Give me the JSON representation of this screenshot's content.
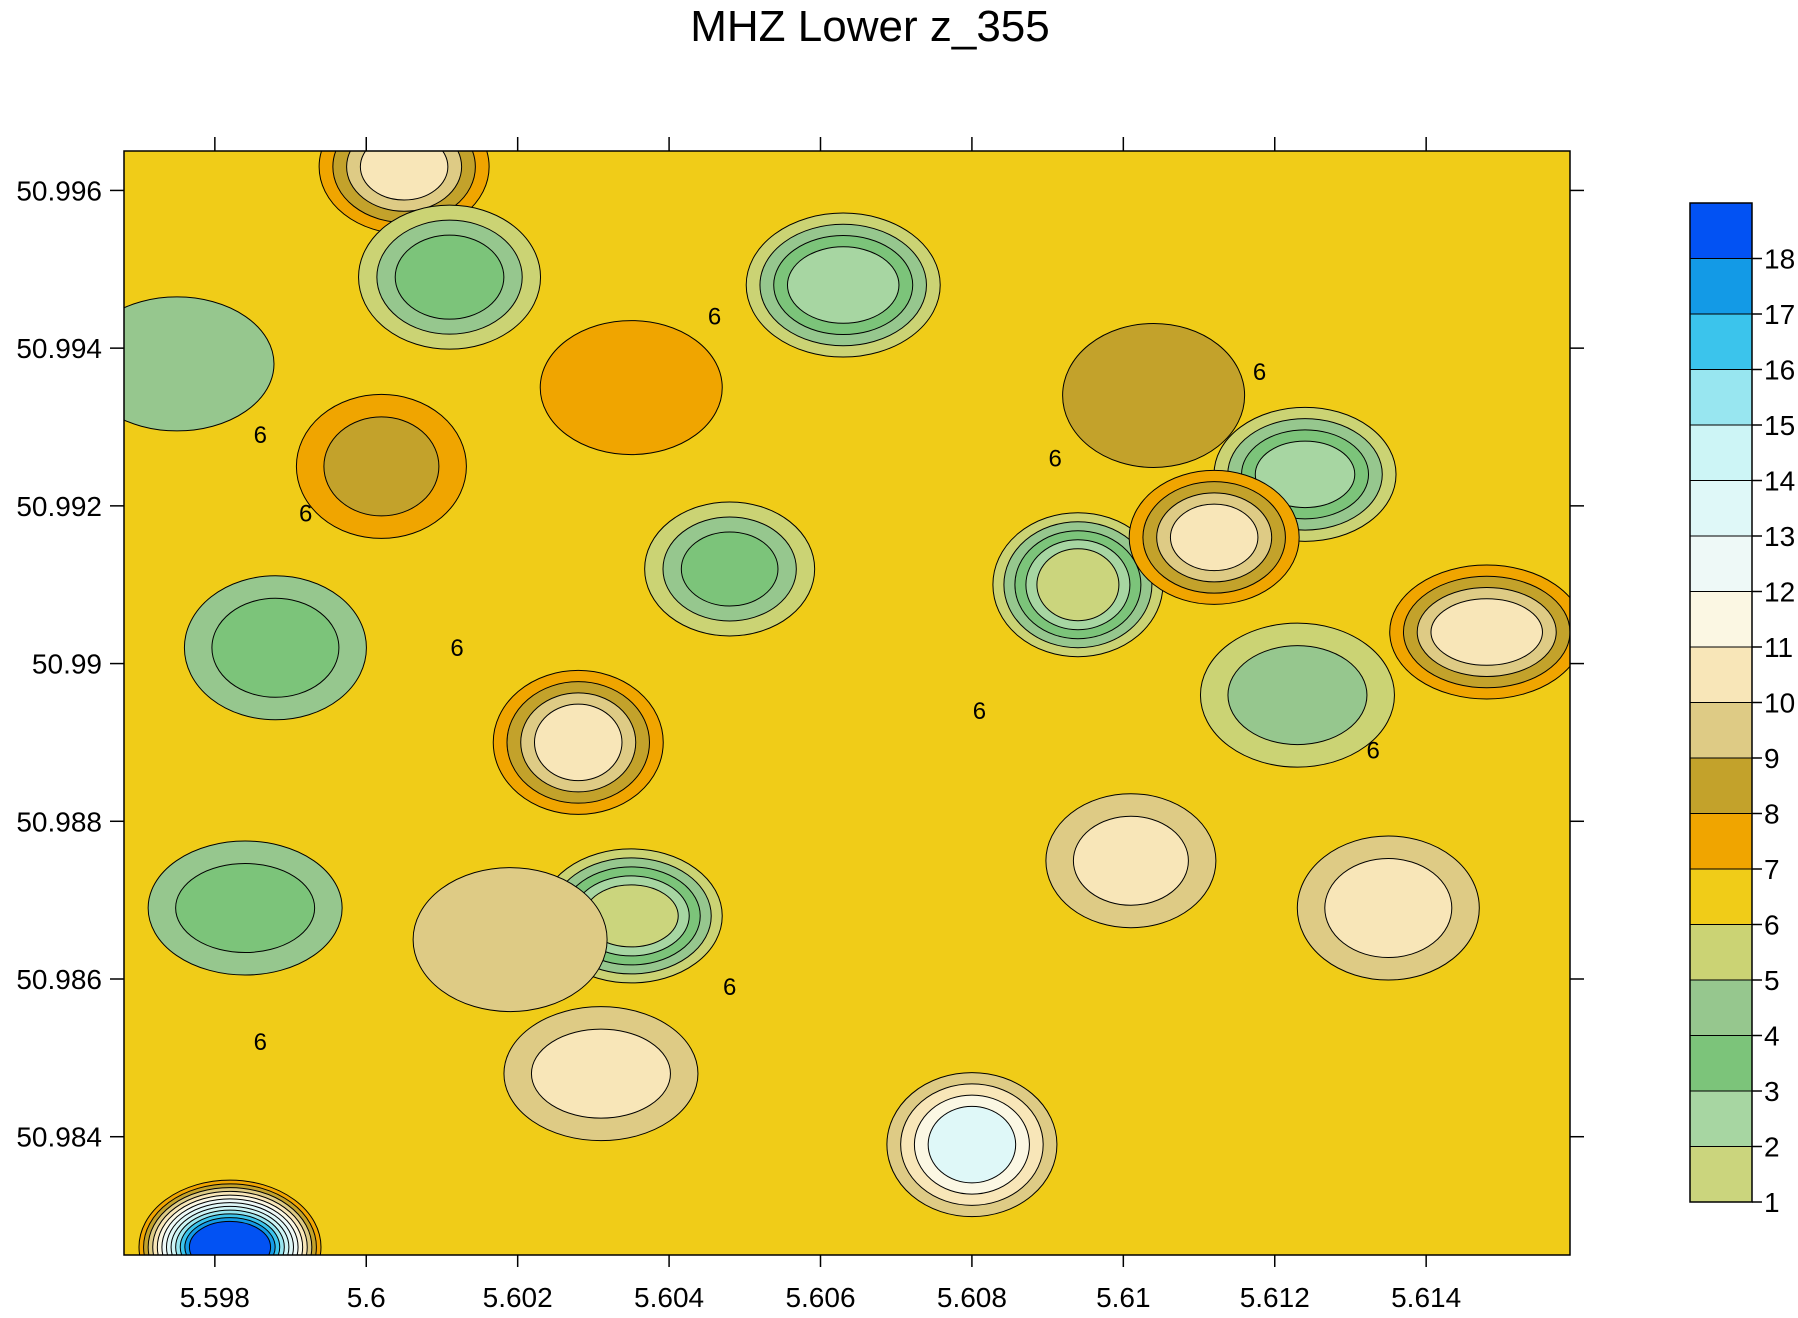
{
  "chart_data": {
    "type": "contour",
    "title": "MHZ Lower z_355",
    "xlabel": "",
    "ylabel": "",
    "xlim": [
      5.5968,
      5.6159
    ],
    "ylim": [
      50.9825,
      50.9965
    ],
    "x_ticks": [
      {
        "value": 5.598,
        "label": "5.598"
      },
      {
        "value": 5.6,
        "label": "5.6"
      },
      {
        "value": 5.602,
        "label": "5.602"
      },
      {
        "value": 5.604,
        "label": "5.604"
      },
      {
        "value": 5.606,
        "label": "5.606"
      },
      {
        "value": 5.608,
        "label": "5.608"
      },
      {
        "value": 5.61,
        "label": "5.61"
      },
      {
        "value": 5.612,
        "label": "5.612"
      },
      {
        "value": 5.614,
        "label": "5.614"
      }
    ],
    "y_ticks": [
      {
        "value": 50.984,
        "label": "50.984"
      },
      {
        "value": 50.986,
        "label": "50.986"
      },
      {
        "value": 50.988,
        "label": "50.988"
      },
      {
        "value": 50.99,
        "label": "50.99"
      },
      {
        "value": 50.992,
        "label": "50.992"
      },
      {
        "value": 50.994,
        "label": "50.994"
      },
      {
        "value": 50.996,
        "label": "50.996"
      }
    ],
    "base_level": 6,
    "base_color": "#f0cc18",
    "contour_level_label": "6",
    "colorbar": {
      "levels": [
        "1",
        "2",
        "3",
        "4",
        "5",
        "6",
        "7",
        "8",
        "9",
        "10",
        "11",
        "12",
        "13",
        "14",
        "15",
        "16",
        "17",
        "18"
      ],
      "colors": [
        "#cbd57d",
        "#a7d6a2",
        "#7cc47a",
        "#96c78e",
        "#cbd374",
        "#f0cc18",
        "#f0a500",
        "#c3a22b",
        "#decb85",
        "#f8e6b8",
        "#fbf7e3",
        "#eef9f7",
        "#dff8f8",
        "#cdf5f6",
        "#98e6f0",
        "#3bc4ec",
        "#139ae6",
        "#0252f3"
      ]
    },
    "features": [
      {
        "x": 5.6005,
        "y": 50.9963,
        "level": 10,
        "levels": [
          7,
          8,
          9,
          10
        ]
      },
      {
        "x": 5.6011,
        "y": 50.9949,
        "level": 3,
        "levels": [
          5,
          4,
          3
        ]
      },
      {
        "x": 5.5975,
        "y": 50.9938,
        "level": 4,
        "levels": [
          4
        ]
      },
      {
        "x": 5.6002,
        "y": 50.9925,
        "level": 8,
        "levels": [
          7,
          8
        ]
      },
      {
        "x": 5.6035,
        "y": 50.9935,
        "level": 7,
        "levels": [
          7
        ]
      },
      {
        "x": 5.6063,
        "y": 50.9948,
        "level": 2,
        "levels": [
          5,
          4,
          3,
          2
        ]
      },
      {
        "x": 5.6048,
        "y": 50.9912,
        "level": 3,
        "levels": [
          5,
          4,
          3
        ]
      },
      {
        "x": 5.5988,
        "y": 50.9902,
        "level": 3,
        "levels": [
          4,
          3
        ]
      },
      {
        "x": 5.5984,
        "y": 50.9869,
        "level": 3,
        "levels": [
          4,
          3
        ]
      },
      {
        "x": 5.6094,
        "y": 50.991,
        "level": 1,
        "levels": [
          5,
          4,
          3,
          2,
          1
        ]
      },
      {
        "x": 5.6124,
        "y": 50.9924,
        "level": 2,
        "levels": [
          5,
          4,
          3,
          2
        ]
      },
      {
        "x": 5.6123,
        "y": 50.9896,
        "level": 4,
        "levels": [
          5,
          4
        ]
      },
      {
        "x": 5.6112,
        "y": 50.9916,
        "level": 10,
        "levels": [
          7,
          8,
          9,
          10
        ]
      },
      {
        "x": 5.6104,
        "y": 50.9934,
        "level": 8,
        "levels": [
          8
        ]
      },
      {
        "x": 5.6148,
        "y": 50.9904,
        "level": 10,
        "levels": [
          7,
          8,
          9,
          10
        ]
      },
      {
        "x": 5.6028,
        "y": 50.989,
        "level": 10,
        "levels": [
          7,
          8,
          9,
          10
        ]
      },
      {
        "x": 5.6035,
        "y": 50.9868,
        "level": 1,
        "levels": [
          5,
          4,
          3,
          2,
          1
        ]
      },
      {
        "x": 5.6019,
        "y": 50.9865,
        "level": 9,
        "levels": [
          9
        ]
      },
      {
        "x": 5.6101,
        "y": 50.9875,
        "level": 10,
        "levels": [
          9,
          10
        ]
      },
      {
        "x": 5.6135,
        "y": 50.9869,
        "level": 10,
        "levels": [
          9,
          10
        ]
      },
      {
        "x": 5.6031,
        "y": 50.9848,
        "level": 10,
        "levels": [
          9,
          10
        ]
      },
      {
        "x": 5.608,
        "y": 50.9839,
        "level": 13,
        "levels": [
          9,
          10,
          11,
          13
        ]
      },
      {
        "x": 5.5982,
        "y": 50.9826,
        "level": 18,
        "levels": [
          7,
          8,
          9,
          10,
          11,
          12,
          13,
          14,
          15,
          16,
          17,
          18
        ]
      }
    ]
  }
}
